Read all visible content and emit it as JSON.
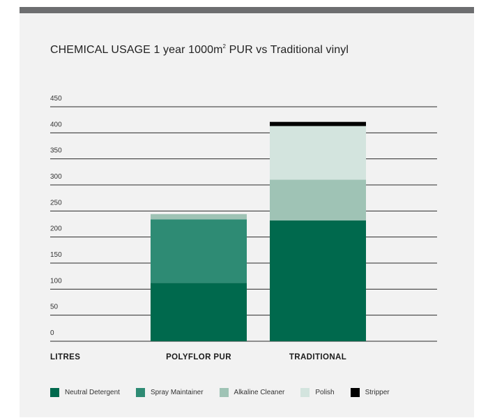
{
  "title_main": "CHEMICAL USAGE 1 year 1000m",
  "title_sup": "2",
  "title_rest": " PUR vs Traditional vinyl",
  "chart_data": {
    "type": "bar",
    "stacked": true,
    "title": "CHEMICAL USAGE 1 year 1000m² PUR vs Traditional vinyl",
    "ylabel": "LITRES",
    "ylim": [
      0,
      450
    ],
    "yticks": [
      0,
      50,
      100,
      150,
      200,
      250,
      300,
      350,
      400,
      450
    ],
    "categories": [
      "POLYFLOR PUR",
      "TRADITIONAL"
    ],
    "series": [
      {
        "name": "Neutral Detergent",
        "color": "#00694d",
        "values": [
          112,
          232
        ]
      },
      {
        "name": "Spray Maintainer",
        "color": "#2e8b74",
        "values": [
          122,
          0
        ]
      },
      {
        "name": "Alkaline Cleaner",
        "color": "#9fc3b5",
        "values": [
          10,
          78
        ]
      },
      {
        "name": "Polish",
        "color": "#d3e4de",
        "values": [
          0,
          103
        ]
      },
      {
        "name": "Stripper",
        "color": "#000000",
        "values": [
          0,
          8
        ]
      }
    ],
    "grid": true,
    "legend": "bottom"
  }
}
